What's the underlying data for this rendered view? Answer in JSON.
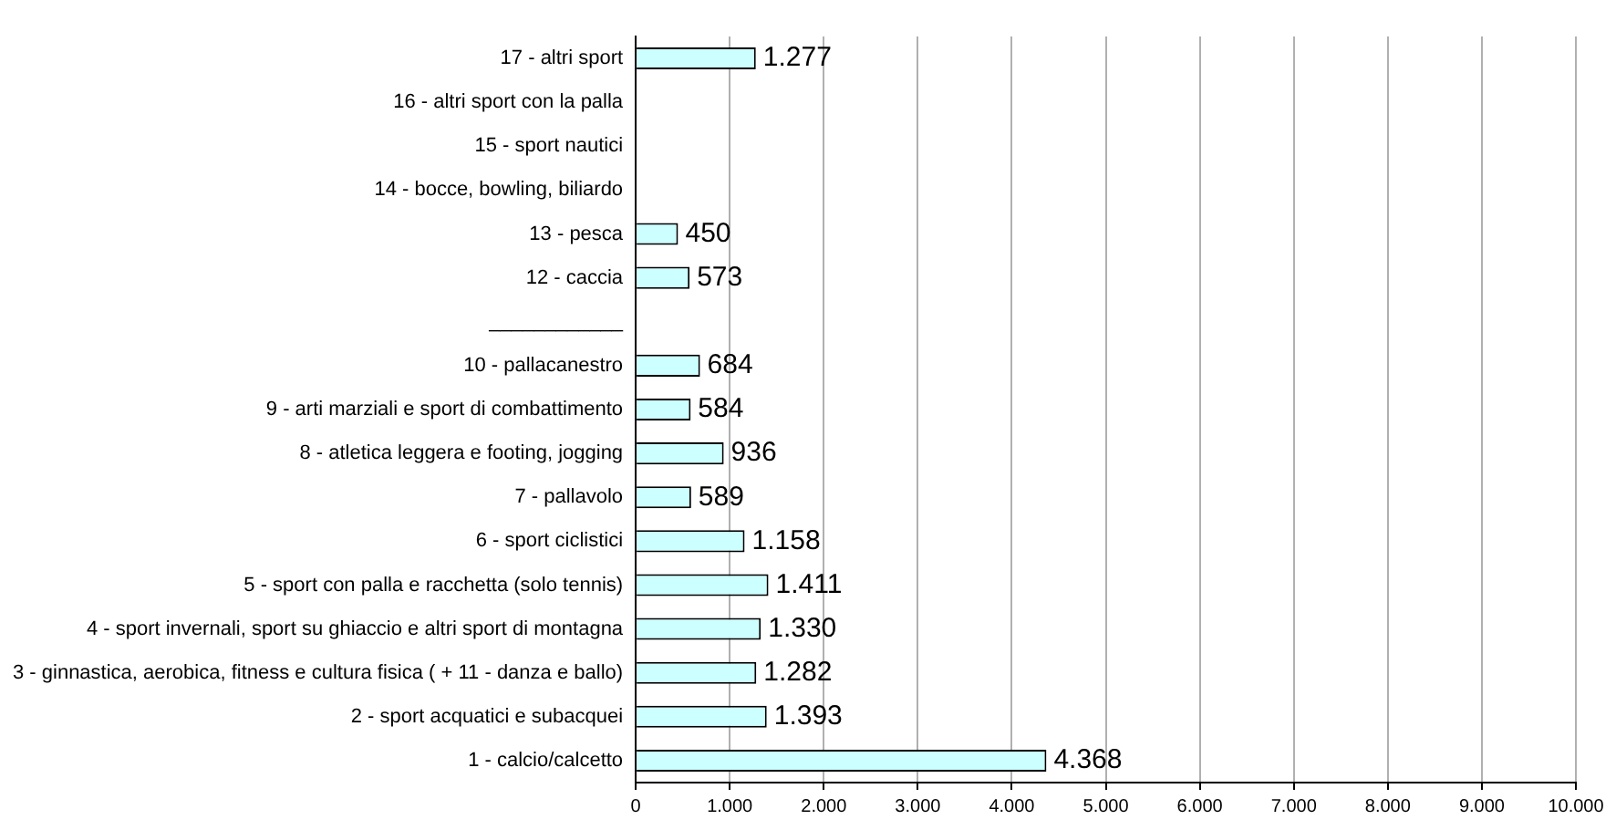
{
  "chart_data": {
    "type": "bar",
    "orientation": "horizontal",
    "categories": [
      "17 - altri sport",
      "16 - altri sport con la palla",
      "15 - sport nautici",
      "14 - bocce, bowling, biliardo",
      "13 - pesca",
      "12 - caccia",
      "____________",
      "10 - pallacanestro",
      "9 - arti marziali e sport di combattimento",
      "8 - atletica leggera e footing, jogging",
      "7 - pallavolo",
      "6 - sport ciclistici",
      "5 - sport con palla e racchetta (solo tennis)",
      "4 - sport invernali, sport su ghiaccio e altri sport di montagna",
      "3 - ginnastica, aerobica, fitness e cultura fisica ( + 11 - danza e ballo)",
      "2 - sport acquatici e subacquei",
      "1 - calcio/calcetto"
    ],
    "values": [
      1277,
      null,
      null,
      null,
      450,
      573,
      null,
      684,
      584,
      936,
      589,
      1158,
      1411,
      1330,
      1282,
      1393,
      4368
    ],
    "value_labels": [
      "1.277",
      null,
      null,
      null,
      "450",
      "573",
      null,
      "684",
      "584",
      "936",
      "589",
      "1.158",
      "1.411",
      "1.330",
      "1.282",
      "1.393",
      "4.368"
    ],
    "color": "#ccffff",
    "xlim": [
      0,
      10000
    ],
    "xticks": [
      0,
      {
        "value": 1000,
        "label": "1.000"
      },
      {
        "value": 2000,
        "label": "2.000"
      },
      {
        "value": 3000,
        "label": "3.000"
      },
      {
        "value": 4000,
        "label": "4.000"
      },
      {
        "value": 5000,
        "label": "5.000"
      },
      {
        "value": 6000,
        "label": "6.000"
      },
      {
        "value": 7000,
        "label": "7.000"
      },
      {
        "value": 8000,
        "label": "8.000"
      },
      {
        "value": 9000,
        "label": "9.000"
      },
      {
        "value": 10000,
        "label": "10.000"
      }
    ],
    "grid": "x"
  }
}
